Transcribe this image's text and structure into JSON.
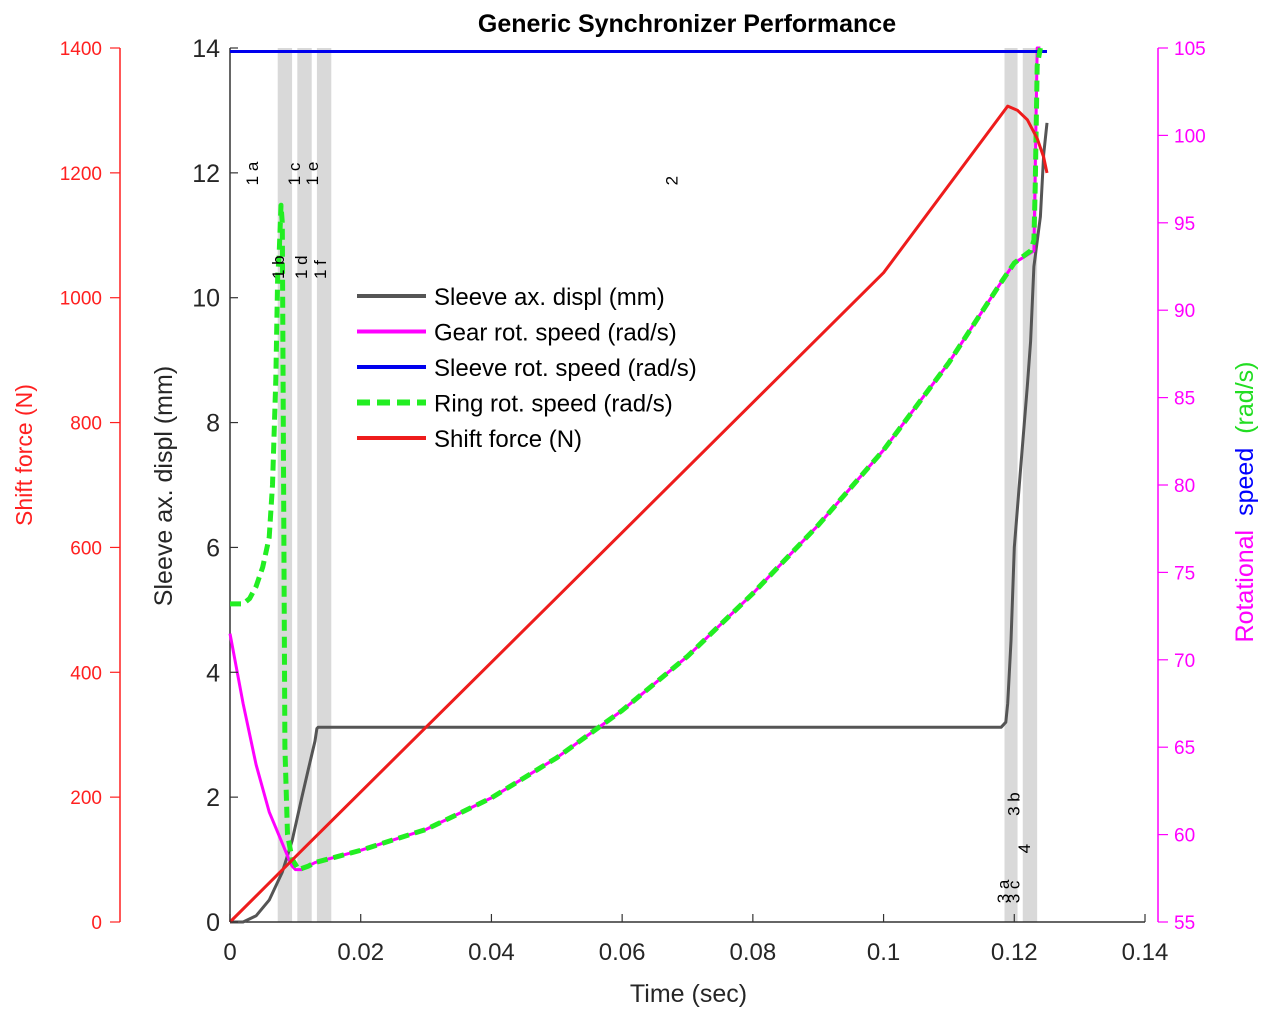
{
  "chart_data": {
    "type": "line",
    "title": "Generic Synchronizer Performance",
    "xlabel": "Time (sec)",
    "xlim": [
      0,
      0.14
    ],
    "xticks": [
      0,
      0.02,
      0.04,
      0.06,
      0.08,
      0.1,
      0.12,
      0.14
    ],
    "xtick_labels": [
      "0",
      "0.02",
      "0.04",
      "0.06",
      "0.08",
      "0.1",
      "0.12",
      "0.14"
    ],
    "grid": false,
    "legend_position": "upper-center",
    "axes": {
      "force": {
        "label": "Shift force (N)",
        "color": "#ff2020",
        "ylim": [
          0,
          1400
        ],
        "ticks": [
          0,
          200,
          400,
          600,
          800,
          1000,
          1200,
          1400
        ],
        "tick_labels": [
          "0",
          "200",
          "400",
          "600",
          "800",
          "1000",
          "1200",
          "1400"
        ]
      },
      "displ": {
        "label": "Sleeve ax. displ (mm)",
        "color": "#333333",
        "ylim": [
          0,
          14
        ],
        "ticks": [
          0,
          2,
          4,
          6,
          8,
          10,
          12,
          14
        ],
        "tick_labels": [
          "0",
          "2",
          "4",
          "6",
          "8",
          "10",
          "12",
          "14"
        ]
      },
      "speed": {
        "label_parts": [
          {
            "text": "Rotational",
            "color": "#ff00ff"
          },
          {
            "text": "speed",
            "color": "#0000ff"
          },
          {
            "text": "(rad/s)",
            "color": "#22dd22"
          }
        ],
        "color": "#ff00ff",
        "ylim": [
          55,
          105
        ],
        "ticks": [
          55,
          60,
          65,
          70,
          75,
          80,
          85,
          90,
          95,
          100,
          105
        ],
        "tick_labels": [
          "55",
          "60",
          "65",
          "70",
          "75",
          "80",
          "85",
          "90",
          "95",
          "100",
          "105"
        ]
      }
    },
    "phase_bands": [
      {
        "from": 0.0073,
        "to": 0.0095
      },
      {
        "from": 0.0103,
        "to": 0.0125
      },
      {
        "from": 0.0133,
        "to": 0.0155
      },
      {
        "from": 0.1185,
        "to": 0.1205
      },
      {
        "from": 0.1213,
        "to": 0.1235
      }
    ],
    "phase_labels": [
      {
        "text": "1 a",
        "x": 0.0043,
        "y": 11.8
      },
      {
        "text": "1 b",
        "x": 0.0083,
        "y": 10.3
      },
      {
        "text": "1 c",
        "x": 0.0107,
        "y": 11.8
      },
      {
        "text": "1 d",
        "x": 0.0118,
        "y": 10.3
      },
      {
        "text": "1 e",
        "x": 0.0135,
        "y": 11.8
      },
      {
        "text": "1 f",
        "x": 0.0147,
        "y": 10.3
      },
      {
        "text": "2",
        "x": 0.0685,
        "y": 11.8
      },
      {
        "text": "3 a",
        "x": 0.1192,
        "y": 0.3
      },
      {
        "text": "3 b",
        "x": 0.1208,
        "y": 1.7
      },
      {
        "text": "3 c",
        "x": 0.1208,
        "y": 0.3
      },
      {
        "text": "4",
        "x": 0.1224,
        "y": 1.1
      }
    ],
    "series": [
      {
        "name": "Sleeve ax. displ (mm)",
        "axis": "displ",
        "color": "#555555",
        "dash": "solid",
        "x": [
          0,
          0.002,
          0.004,
          0.006,
          0.008,
          0.0095,
          0.011,
          0.012,
          0.013,
          0.0133,
          0.0135,
          0.02,
          0.05,
          0.08,
          0.1,
          0.118,
          0.1187,
          0.119,
          0.1195,
          0.12,
          0.121,
          0.122,
          0.1225,
          0.123,
          0.124,
          0.1245,
          0.125
        ],
        "y": [
          0,
          0.0,
          0.1,
          0.35,
          0.8,
          1.3,
          2.0,
          2.45,
          2.9,
          3.1,
          3.12,
          3.12,
          3.12,
          3.12,
          3.12,
          3.12,
          3.2,
          3.5,
          4.5,
          6.0,
          7.3,
          8.6,
          9.3,
          10.5,
          11.3,
          12.3,
          12.8
        ]
      },
      {
        "name": "Gear rot. speed (rad/s)",
        "axis": "speed",
        "color": "#ff00ff",
        "dash": "solid",
        "x": [
          0,
          0.002,
          0.004,
          0.006,
          0.008,
          0.009,
          0.0095,
          0.01,
          0.011,
          0.012,
          0.013,
          0.015,
          0.02,
          0.03,
          0.04,
          0.05,
          0.06,
          0.07,
          0.08,
          0.09,
          0.1,
          0.11,
          0.118,
          0.12,
          0.123,
          0.1235,
          0.124
        ],
        "y": [
          71.5,
          67.5,
          64.0,
          61.3,
          59.5,
          58.6,
          58.2,
          58.0,
          58.0,
          58.2,
          58.4,
          58.6,
          59.1,
          60.3,
          62.1,
          64.4,
          67.1,
          70.2,
          73.8,
          77.7,
          82.0,
          87.0,
          91.6,
          92.7,
          93.4,
          105.0,
          105.0
        ]
      },
      {
        "name": "Sleeve rot. speed (rad/s)",
        "axis": "speed",
        "color": "#0000ee",
        "dash": "solid",
        "x": [
          0,
          0.125
        ],
        "y": [
          104.8,
          104.8
        ]
      },
      {
        "name": "Ring rot. speed (rad/s)",
        "axis": "speed",
        "color": "#22ee22",
        "dash": "dashed",
        "x": [
          0,
          0.002,
          0.003,
          0.004,
          0.005,
          0.006,
          0.0065,
          0.007,
          0.0073,
          0.0075,
          0.0078,
          0.008,
          0.0082,
          0.0084,
          0.0088,
          0.0095,
          0.0105,
          0.012,
          0.013,
          0.015,
          0.02,
          0.03,
          0.04,
          0.05,
          0.06,
          0.07,
          0.08,
          0.09,
          0.1,
          0.11,
          0.118,
          0.12,
          0.1225,
          0.123,
          0.1232,
          0.1235,
          0.124
        ],
        "y": [
          73.2,
          73.2,
          73.5,
          74.2,
          75.3,
          77.0,
          80.0,
          86.0,
          92.0,
          93.0,
          96.0,
          95.0,
          80.0,
          65.0,
          60.0,
          58.6,
          58.0,
          58.2,
          58.4,
          58.6,
          59.1,
          60.3,
          62.1,
          64.4,
          67.1,
          70.2,
          73.8,
          77.7,
          82.0,
          87.0,
          91.6,
          92.7,
          93.4,
          94.0,
          97.0,
          104.0,
          105.0
        ]
      },
      {
        "name": "Shift force (N)",
        "axis": "force",
        "color": "#ee1c1c",
        "dash": "solid",
        "x": [
          0,
          0.0115,
          0.05,
          0.1,
          0.119,
          0.1205,
          0.122,
          0.1235,
          0.1245,
          0.125
        ],
        "y": [
          0,
          120,
          520,
          1040,
          1307,
          1300,
          1285,
          1255,
          1225,
          1200
        ]
      }
    ]
  }
}
